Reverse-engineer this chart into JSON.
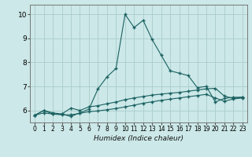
{
  "xlabel": "Humidex (Indice chaleur)",
  "background_color": "#cce8e8",
  "grid_color": "#aacccc",
  "line_color": "#1a6060",
  "xlim": [
    -0.5,
    23.5
  ],
  "ylim": [
    5.5,
    10.4
  ],
  "xticks": [
    0,
    1,
    2,
    3,
    4,
    5,
    6,
    7,
    8,
    9,
    10,
    11,
    12,
    13,
    14,
    15,
    16,
    17,
    18,
    19,
    20,
    21,
    22,
    23
  ],
  "yticks": [
    6,
    7,
    8,
    9,
    10
  ],
  "series1_x": [
    0,
    1,
    2,
    3,
    4,
    5,
    6,
    7,
    8,
    9,
    10,
    11,
    12,
    13,
    14,
    15,
    16,
    17,
    18,
    19,
    20,
    21,
    22,
    23
  ],
  "series1_y": [
    5.8,
    6.0,
    5.85,
    5.85,
    5.75,
    5.9,
    6.05,
    6.9,
    7.4,
    7.75,
    10.0,
    9.45,
    9.75,
    8.95,
    8.3,
    7.65,
    7.55,
    7.45,
    6.95,
    7.0,
    6.35,
    6.5,
    6.55,
    6.55
  ],
  "series2_x": [
    0,
    1,
    2,
    3,
    4,
    5,
    6,
    7,
    8,
    9,
    10,
    11,
    12,
    13,
    14,
    15,
    16,
    17,
    18,
    19,
    20,
    21,
    22,
    23
  ],
  "series2_y": [
    5.8,
    6.0,
    5.9,
    5.85,
    6.1,
    6.0,
    6.15,
    6.2,
    6.28,
    6.35,
    6.45,
    6.52,
    6.58,
    6.64,
    6.68,
    6.72,
    6.75,
    6.8,
    6.85,
    6.9,
    6.92,
    6.6,
    6.5,
    6.55
  ],
  "series3_x": [
    0,
    1,
    2,
    3,
    4,
    5,
    6,
    7,
    8,
    9,
    10,
    11,
    12,
    13,
    14,
    15,
    16,
    17,
    18,
    19,
    20,
    21,
    22,
    23
  ],
  "series3_y": [
    5.8,
    5.9,
    5.85,
    5.82,
    5.82,
    5.88,
    5.95,
    5.98,
    6.03,
    6.08,
    6.15,
    6.22,
    6.3,
    6.36,
    6.42,
    6.47,
    6.52,
    6.57,
    6.62,
    6.67,
    6.52,
    6.38,
    6.48,
    6.52
  ]
}
